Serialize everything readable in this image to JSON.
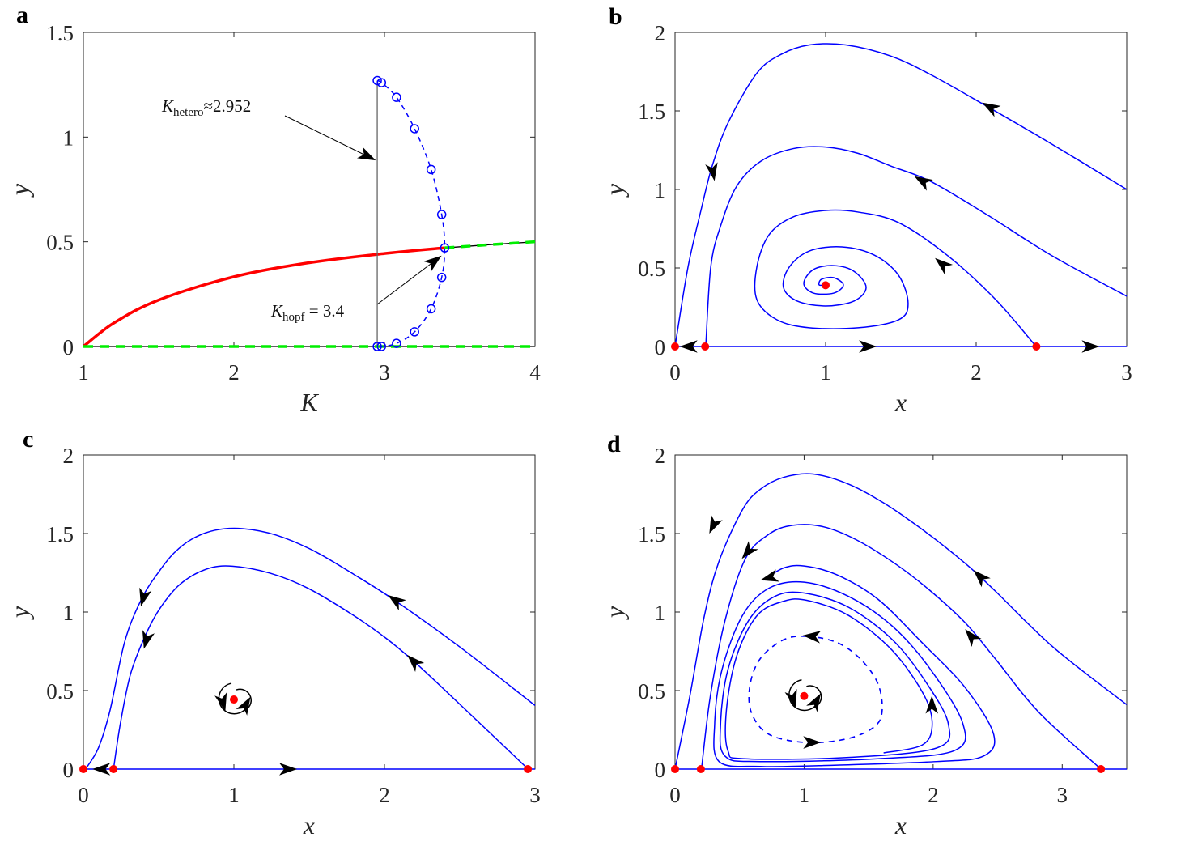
{
  "chart_data": [
    {
      "panel": "a",
      "type": "line",
      "xlabel": "K",
      "ylabel": "y",
      "xlim": [
        1,
        4
      ],
      "ylim": [
        0,
        1.5
      ],
      "xticks": [
        "1",
        "2",
        "3",
        "4"
      ],
      "xtick_values": [
        1,
        2,
        3,
        4
      ],
      "yticks": [
        "0",
        "0.5",
        "1",
        "1.5"
      ],
      "ytick_values": [
        0,
        0.5,
        1,
        1.5
      ],
      "colors": {
        "stable": "#ff0000",
        "unstable": "#000000",
        "saddle_overlay": "#00ee00",
        "cycle": "#0000ff"
      },
      "series": [
        {
          "style": "red-solid",
          "x": [
            1,
            1.2,
            1.5,
            2,
            2.5,
            3,
            3.4
          ],
          "y": [
            0,
            0.111,
            0.222,
            0.333,
            0.4,
            0.444,
            0.471
          ]
        },
        {
          "style": "black-solid",
          "x": [
            3.4,
            3.7,
            4
          ],
          "y": [
            0.471,
            0.486,
            0.5
          ]
        },
        {
          "style": "green-dashed",
          "x": [
            3.4,
            3.7,
            4
          ],
          "y": [
            0.471,
            0.486,
            0.5
          ]
        },
        {
          "style": "black-solid",
          "x": [
            1,
            4
          ],
          "y": [
            0,
            0
          ]
        },
        {
          "style": "green-dashed",
          "x": [
            1,
            4
          ],
          "y": [
            0,
            0
          ]
        },
        {
          "style": "gray-solid",
          "x": [
            2.952,
            2.952
          ],
          "y": [
            0,
            1.27
          ]
        },
        {
          "style": "blue-dashed-circles",
          "x": [
            2.952,
            2.98,
            3.08,
            3.2,
            3.31,
            3.38,
            3.4,
            3.38,
            3.31,
            3.2,
            3.08,
            2.98,
            2.952
          ],
          "y": [
            1.27,
            1.26,
            1.19,
            1.04,
            0.845,
            0.63,
            0.471,
            0.33,
            0.18,
            0.07,
            0.015,
            0,
            0
          ]
        }
      ],
      "annotations": [
        {
          "symbol": "K",
          "subscript": "hetero",
          "rest": "≈2.952",
          "points_to": [
            2.952,
            0.9
          ]
        },
        {
          "symbol": "K",
          "subscript": "hopf",
          "rest": " = 3.4",
          "points_to": [
            3.4,
            0.42
          ]
        }
      ]
    },
    {
      "panel": "b",
      "type": "line",
      "xlabel": "x",
      "ylabel": "y",
      "xlim": [
        0,
        3
      ],
      "ylim": [
        0,
        2
      ],
      "xticks": [
        "0",
        "1",
        "2",
        "3"
      ],
      "xtick_values": [
        0,
        1,
        2,
        3
      ],
      "yticks": [
        "0",
        "0.5",
        "1",
        "1.5",
        "2"
      ],
      "ytick_values": [
        0,
        0.5,
        1,
        1.5,
        2
      ],
      "series": [
        {
          "style": "blue-solid",
          "x": [
            0,
            3
          ],
          "y": [
            0,
            0
          ]
        },
        {
          "style": "blue-solid",
          "x": [
            0,
            0.086,
            0.172,
            0.247,
            0.355,
            0.543,
            0.704,
            0.892,
            1.134,
            1.43,
            1.7,
            2.07,
            2.5,
            3.0
          ],
          "y": [
            0,
            0.505,
            0.866,
            1.15,
            1.43,
            1.74,
            1.86,
            1.92,
            1.92,
            1.85,
            1.73,
            1.53,
            1.29,
            1.0
          ]
        },
        {
          "style": "blue-solid",
          "x": [
            0.204,
            0.237,
            0.301,
            0.409,
            0.57,
            0.785,
            1.0,
            1.215,
            1.43,
            1.7,
            2.07,
            2.5,
            3.0
          ],
          "y": [
            0,
            0.505,
            0.763,
            1.02,
            1.18,
            1.26,
            1.27,
            1.23,
            1.15,
            1.05,
            0.84,
            0.58,
            0.32
          ]
        },
        {
          "style": "blue-solid",
          "x": [
            2.398,
            2.129,
            1.806,
            1.484,
            1.215,
            1.0,
            0.785,
            0.624,
            0.543,
            0.543,
            0.677,
            0.892,
            1.215,
            1.484,
            1.548,
            1.484,
            1.323,
            1.108,
            0.892,
            0.758,
            0.72,
            0.812,
            1.0,
            1.188,
            1.269,
            1.188,
            1.054,
            0.919,
            0.855,
            0.919,
            1.054,
            1.118,
            1.054,
            0.973,
            0.957,
            1.0
          ],
          "y": [
            0,
            0.299,
            0.582,
            0.789,
            0.856,
            0.866,
            0.825,
            0.711,
            0.505,
            0.299,
            0.17,
            0.119,
            0.119,
            0.17,
            0.273,
            0.454,
            0.582,
            0.634,
            0.608,
            0.505,
            0.376,
            0.289,
            0.258,
            0.289,
            0.376,
            0.479,
            0.515,
            0.49,
            0.402,
            0.34,
            0.34,
            0.392,
            0.438,
            0.428,
            0.392,
            0.392
          ]
        }
      ],
      "equilibria": [
        [
          0,
          0
        ],
        [
          0.2,
          0
        ],
        [
          2.4,
          0
        ],
        [
          1.0,
          0.39
        ]
      ],
      "arrows": [
        {
          "x": 0.1,
          "y": 0,
          "dir": 180
        },
        {
          "x": 1.27,
          "y": 0,
          "dir": 0
        },
        {
          "x": 2.75,
          "y": 0,
          "dir": 0
        },
        {
          "x": 0.25,
          "y": 1.12,
          "dir": -80
        },
        {
          "x": 2.1,
          "y": 1.52,
          "dir": 150
        },
        {
          "x": 1.65,
          "y": 1.05,
          "dir": 150
        },
        {
          "x": 1.78,
          "y": 0.52,
          "dir": 140
        }
      ]
    },
    {
      "panel": "c",
      "type": "line",
      "xlabel": "x",
      "ylabel": "y",
      "xlim": [
        0,
        3
      ],
      "ylim": [
        0,
        2
      ],
      "xticks": [
        "0",
        "1",
        "2",
        "3"
      ],
      "xtick_values": [
        0,
        1,
        2,
        3
      ],
      "yticks": [
        "0",
        "0.5",
        "1",
        "1.5",
        "2"
      ],
      "ytick_values": [
        0,
        0.5,
        1,
        1.5,
        2
      ],
      "series": [
        {
          "style": "blue-solid",
          "x": [
            0,
            3
          ],
          "y": [
            0,
            0
          ]
        },
        {
          "style": "blue-solid",
          "x": [
            0.014,
            0.1,
            0.178,
            0.275,
            0.39,
            0.507,
            0.603,
            0.72,
            0.874,
            1.058,
            1.28,
            1.532,
            1.8,
            2.07,
            2.5,
            3.0
          ],
          "y": [
            0,
            0.135,
            0.378,
            0.813,
            1.09,
            1.264,
            1.377,
            1.464,
            1.521,
            1.531,
            1.49,
            1.389,
            1.238,
            1.073,
            0.778,
            0.405
          ]
        },
        {
          "style": "blue-solid",
          "x": [
            0.2,
            0.246,
            0.313,
            0.41,
            0.507,
            0.642,
            0.816,
            0.99,
            1.242,
            1.493,
            1.783,
            2.015,
            2.209,
            2.5,
            2.954
          ],
          "y": [
            0,
            0.292,
            0.604,
            0.847,
            1.021,
            1.177,
            1.273,
            1.292,
            1.247,
            1.151,
            0.986,
            0.83,
            0.674,
            0.413,
            0
          ]
        }
      ],
      "equilibria": [
        [
          0,
          0
        ],
        [
          0.2,
          0
        ],
        [
          2.952,
          0
        ],
        [
          1.0,
          0.443
        ]
      ],
      "arrows": [
        {
          "x": 0.13,
          "y": 0,
          "dir": 180
        },
        {
          "x": 1.35,
          "y": 0,
          "dir": 0
        },
        {
          "x": 0.4,
          "y": 1.1,
          "dir": -105
        },
        {
          "x": 0.42,
          "y": 0.83,
          "dir": -105
        },
        {
          "x": 2.08,
          "y": 1.07,
          "dir": 145
        },
        {
          "x": 2.2,
          "y": 0.68,
          "dir": 135
        }
      ]
    },
    {
      "panel": "d",
      "type": "line",
      "xlabel": "x",
      "ylabel": "y",
      "xlim": [
        0,
        3.5
      ],
      "ylim": [
        0,
        2
      ],
      "xticks": [
        "0",
        "1",
        "2",
        "3"
      ],
      "xtick_values": [
        0,
        1,
        2,
        3
      ],
      "yticks": [
        "0",
        "0.5",
        "1",
        "1.5",
        "2"
      ],
      "ytick_values": [
        0,
        0.5,
        1,
        1.5,
        2
      ],
      "series": [
        {
          "style": "blue-solid",
          "x": [
            0,
            3.5
          ],
          "y": [
            0,
            0
          ]
        },
        {
          "style": "blue-solid",
          "x": [
            0,
            0.114,
            0.228,
            0.341,
            0.523,
            0.66,
            0.842,
            1.07,
            1.343,
            1.616,
            1.935,
            2.253,
            2.481,
            2.936,
            3.5
          ],
          "y": [
            0,
            0.462,
            0.979,
            1.324,
            1.652,
            1.781,
            1.858,
            1.879,
            1.815,
            1.695,
            1.514,
            1.307,
            1.134,
            0.772,
            0.41
          ]
        },
        {
          "style": "blue-solid",
          "x": [
            0.205,
            0.273,
            0.387,
            0.546,
            0.728,
            0.91,
            1.138,
            1.4,
            1.707,
            1.98,
            2.253,
            2.481,
            2.822,
            3.3
          ],
          "y": [
            0,
            0.462,
            0.945,
            1.341,
            1.496,
            1.552,
            1.545,
            1.462,
            1.307,
            1.134,
            0.928,
            0.703,
            0.359,
            0
          ]
        },
        {
          "style": "blue-solid",
          "x": [
            1.616,
            1.912,
            1.992,
            1.935,
            1.684,
            1.343,
            1.024,
            0.842,
            0.637,
            0.478,
            0.398,
            0.41,
            0.546,
            1.343,
            2.026,
            2.117,
            1.935,
            1.684,
            1.343,
            1.001,
            0.774,
            0.569,
            0.41,
            0.353,
            0.387,
            0.66,
            1.57,
            2.162,
            2.23,
            1.98,
            1.684,
            1.343,
            1.001,
            0.728,
            0.523,
            0.364,
            0.307,
            0.341,
            0.66,
            1.115,
            2.026,
            2.39,
            2.469,
            2.253,
            1.912,
            1.57,
            1.252,
            1.001,
            0.842,
            0.683
          ],
          "y": [
            0.103,
            0.152,
            0.272,
            0.462,
            0.755,
            0.979,
            1.074,
            1.069,
            0.979,
            0.721,
            0.376,
            0.117,
            0.066,
            0.074,
            0.134,
            0.29,
            0.565,
            0.824,
            1.031,
            1.121,
            1.1,
            0.945,
            0.634,
            0.29,
            0.083,
            0.048,
            0.066,
            0.117,
            0.29,
            0.634,
            0.91,
            1.1,
            1.19,
            1.152,
            0.979,
            0.634,
            0.29,
            0.048,
            0.017,
            0.022,
            0.048,
            0.083,
            0.221,
            0.514,
            0.807,
            1.083,
            1.238,
            1.293,
            1.281,
            1.203
          ]
        },
        {
          "style": "blue-dashed-closed",
          "x": [
            1.024,
            1.252,
            1.434,
            1.57,
            1.605,
            1.548,
            1.343,
            1.024,
            0.728,
            0.592,
            0.58,
            0.66,
            0.842
          ],
          "y": [
            0.845,
            0.807,
            0.703,
            0.548,
            0.376,
            0.272,
            0.195,
            0.169,
            0.221,
            0.359,
            0.531,
            0.703,
            0.824
          ]
        }
      ],
      "equilibria": [
        [
          0,
          0
        ],
        [
          0.2,
          0
        ],
        [
          3.3,
          0
        ],
        [
          1.0,
          0.465
        ]
      ],
      "arrows": [
        {
          "x": 0.3,
          "y": 1.56,
          "dir": -115
        },
        {
          "x": 0.57,
          "y": 1.39,
          "dir": -130
        },
        {
          "x": 0.74,
          "y": 1.22,
          "dir": -165
        },
        {
          "x": 2.37,
          "y": 1.22,
          "dir": 135
        },
        {
          "x": 2.3,
          "y": 0.84,
          "dir": 130
        },
        {
          "x": 1.99,
          "y": 0.4,
          "dir": 90
        },
        {
          "x": 1.07,
          "y": 0.845,
          "dir": 175
        },
        {
          "x": 1.05,
          "y": 0.17,
          "dir": 0
        }
      ]
    }
  ],
  "panel_labels": [
    "a",
    "b",
    "c",
    "d"
  ]
}
